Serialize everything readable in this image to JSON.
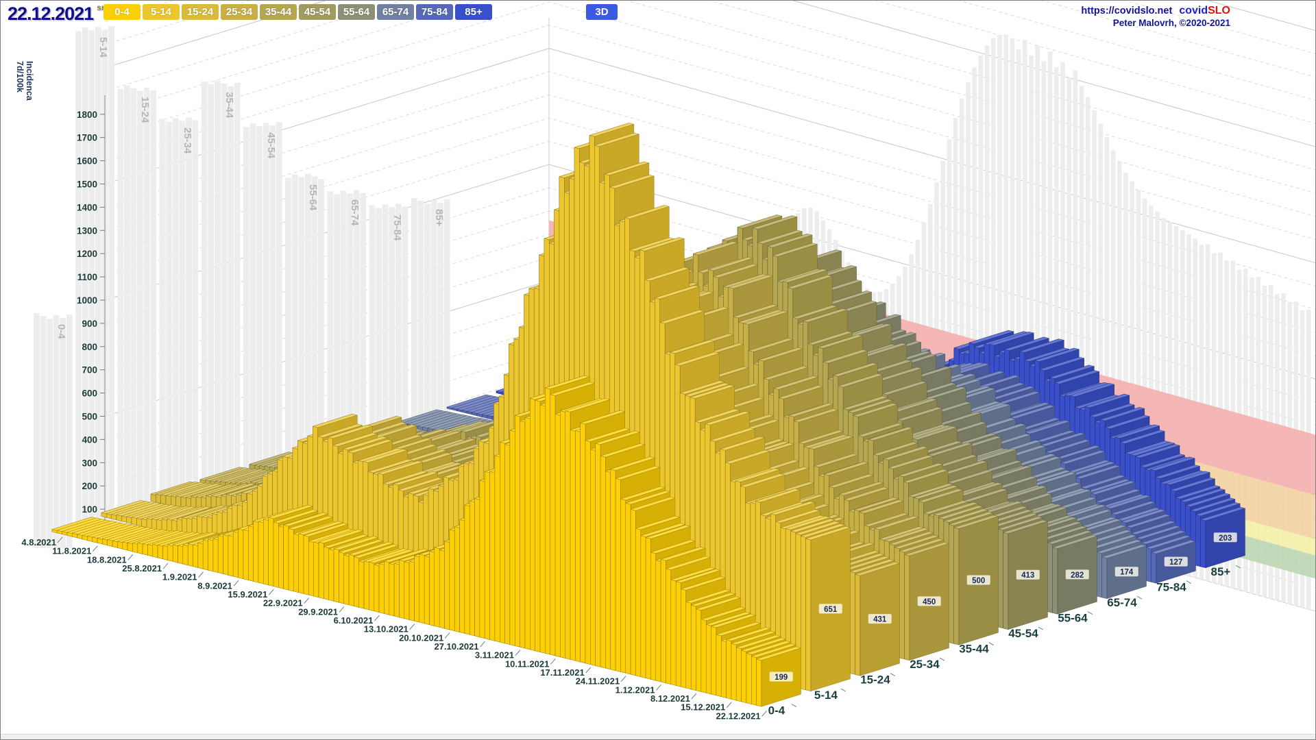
{
  "header": {
    "date": "22.12.2021",
    "day_abbr": "sre",
    "mode_button": "3D",
    "mode_button_color": "#3c59e1",
    "site_url": "https://covidslo.net",
    "logo_part1": "covid",
    "logo_part2": "SLO",
    "credit": "Peter Malovrh, ©2020-2021"
  },
  "chart_data": {
    "type": "3d-ridge-bar",
    "title": "",
    "ylabel_lines": [
      "7d/100k",
      "Incidenca"
    ],
    "ylim": [
      0,
      1800
    ],
    "y_ticks": [
      100,
      200,
      300,
      400,
      500,
      600,
      700,
      800,
      900,
      1000,
      1100,
      1200,
      1300,
      1400,
      1500,
      1600,
      1700,
      1800
    ],
    "x_tick_dates": [
      "4.8.2021",
      "11.8.2021",
      "18.8.2021",
      "25.8.2021",
      "1.9.2021",
      "8.9.2021",
      "15.9.2021",
      "22.9.2021",
      "29.9.2021",
      "6.10.2021",
      "13.10.2021",
      "20.10.2021",
      "27.10.2021",
      "3.11.2021",
      "10.11.2021",
      "17.11.2021",
      "24.11.2021",
      "1.12.2021",
      "8.12.2021",
      "15.12.2021",
      "22.12.2021"
    ],
    "days_span": 141,
    "grid": "dashed",
    "legend_position": "top-buttons",
    "groups": [
      {
        "label": "0-4",
        "color": "#fccf06",
        "end_value": 199,
        "weekly_values": [
          10,
          18,
          30,
          55,
          95,
          180,
          280,
          255,
          215,
          205,
          240,
          350,
          600,
          950,
          1100,
          1010,
          800,
          560,
          380,
          250,
          199
        ]
      },
      {
        "label": "5-14",
        "color": "#ecc62f",
        "end_value": 651,
        "weekly_values": [
          15,
          30,
          60,
          115,
          210,
          430,
          580,
          540,
          440,
          420,
          540,
          800,
          1350,
          1900,
          2100,
          1750,
          1350,
          1020,
          820,
          690,
          651
        ]
      },
      {
        "label": "15-24",
        "color": "#dabb3b",
        "end_value": 431,
        "weekly_values": [
          30,
          55,
          95,
          155,
          260,
          430,
          520,
          440,
          345,
          315,
          390,
          570,
          920,
          1330,
          1480,
          1320,
          1040,
          790,
          610,
          480,
          431
        ]
      },
      {
        "label": "25-34",
        "color": "#c8b046",
        "end_value": 450,
        "weekly_values": [
          25,
          50,
          85,
          135,
          215,
          345,
          410,
          370,
          315,
          305,
          385,
          570,
          920,
          1340,
          1500,
          1350,
          1080,
          830,
          650,
          520,
          450
        ]
      },
      {
        "label": "35-44",
        "color": "#b5a751",
        "end_value": 500,
        "weekly_values": [
          25,
          45,
          80,
          130,
          205,
          315,
          390,
          360,
          315,
          315,
          405,
          610,
          970,
          1400,
          1560,
          1410,
          1130,
          880,
          700,
          560,
          500
        ]
      },
      {
        "label": "45-54",
        "color": "#a19b61",
        "end_value": 413,
        "weekly_values": [
          18,
          32,
          55,
          95,
          150,
          235,
          300,
          285,
          255,
          265,
          335,
          520,
          820,
          1170,
          1310,
          1200,
          980,
          780,
          615,
          480,
          413
        ]
      },
      {
        "label": "55-64",
        "color": "#8d9073",
        "end_value": 282,
        "weekly_values": [
          12,
          22,
          38,
          62,
          100,
          155,
          205,
          200,
          185,
          200,
          255,
          395,
          630,
          890,
          1010,
          940,
          790,
          635,
          505,
          380,
          282
        ]
      },
      {
        "label": "65-74",
        "color": "#7081a1",
        "end_value": 174,
        "weekly_values": [
          8,
          15,
          26,
          42,
          68,
          102,
          132,
          134,
          130,
          142,
          188,
          295,
          470,
          660,
          770,
          730,
          630,
          505,
          395,
          285,
          174
        ]
      },
      {
        "label": "75-84",
        "color": "#5569b6",
        "end_value": 127,
        "weekly_values": [
          6,
          12,
          20,
          33,
          52,
          80,
          106,
          112,
          114,
          128,
          168,
          260,
          405,
          570,
          660,
          630,
          545,
          445,
          345,
          235,
          127
        ]
      },
      {
        "label": "85+",
        "color": "#3a50ca",
        "end_value": 203,
        "weekly_values": [
          8,
          15,
          26,
          42,
          66,
          96,
          126,
          136,
          142,
          160,
          215,
          325,
          500,
          650,
          730,
          700,
          620,
          515,
          415,
          305,
          203
        ]
      }
    ]
  },
  "background": {
    "silhouette_color": "#ededed",
    "label_color": "#b5b5b5",
    "history_silhouettes": [
      {
        "label": "0-4",
        "peak": 1000
      },
      {
        "label": "5-14",
        "peak": 2180
      },
      {
        "label": "15-24",
        "peak": 1870
      },
      {
        "label": "25-34",
        "peak": 1680
      },
      {
        "label": "35-44",
        "peak": 1780
      },
      {
        "label": "45-54",
        "peak": 1550
      },
      {
        "label": "55-64",
        "peak": 1270
      },
      {
        "label": "65-74",
        "peak": 1150
      },
      {
        "label": "75-84",
        "peak": 1030
      },
      {
        "label": "85+",
        "peak": 1000
      }
    ],
    "overall_history_values": [
      50,
      80,
      110,
      150,
      190,
      240,
      290,
      350,
      420,
      490,
      560,
      630,
      700,
      770,
      840,
      900,
      950,
      1000,
      1050,
      1090,
      1120,
      1130,
      1120,
      1090,
      1060,
      1020,
      980,
      940,
      900,
      870,
      850,
      840,
      850,
      870,
      900,
      940,
      990,
      1050,
      1120,
      1200,
      1290,
      1390,
      1490,
      1590,
      1690,
      1780,
      1860,
      1930,
      1990,
      2040,
      2080,
      2100,
      2110,
      2100,
      2060,
      2110,
      2050,
      2100,
      2040,
      2090,
      2030,
      2060,
      2000,
      2040,
      1980,
      1940,
      1890,
      1840,
      1790,
      1740,
      1700,
      1660,
      1630,
      1600,
      1570,
      1550,
      1530,
      1510,
      1500,
      1490,
      1480,
      1470,
      1460,
      1440,
      1450,
      1420,
      1430,
      1400,
      1410,
      1380,
      1390,
      1360,
      1370,
      1340,
      1350,
      1320,
      1330,
      1300,
      1310,
      1280,
      1290
    ],
    "threshold_bands": [
      {
        "color": "#b9d5af",
        "from": 140,
        "to": 240
      },
      {
        "color": "#f3f0a4",
        "from": 240,
        "to": 310
      },
      {
        "color": "#f3d09e",
        "from": 310,
        "to": 500
      },
      {
        "color": "#f4abaa",
        "from": 500,
        "to": 760
      }
    ]
  }
}
